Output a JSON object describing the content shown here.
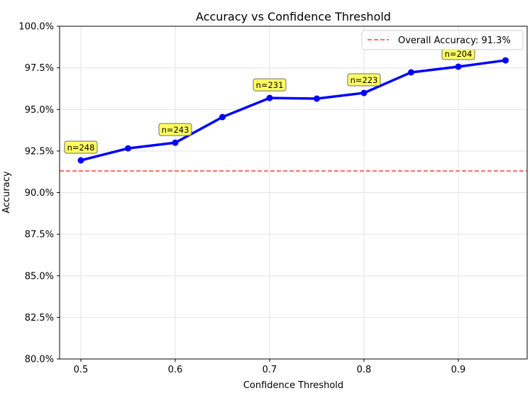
{
  "chart_data": {
    "type": "line",
    "title": "Accuracy vs Confidence Threshold",
    "xlabel": "Confidence Threshold",
    "ylabel": "Accuracy",
    "xlim": [
      0.477,
      0.973
    ],
    "ylim": [
      80.0,
      100.0
    ],
    "x_ticks": [
      0.5,
      0.6,
      0.7,
      0.8,
      0.9
    ],
    "x_tick_labels": [
      "0.5",
      "0.6",
      "0.7",
      "0.8",
      "0.9"
    ],
    "y_ticks": [
      80.0,
      82.5,
      85.0,
      87.5,
      90.0,
      92.5,
      95.0,
      97.5,
      100.0
    ],
    "y_tick_labels": [
      "80.0%",
      "82.5%",
      "85.0%",
      "87.5%",
      "90.0%",
      "92.5%",
      "95.0%",
      "97.5%",
      "100.0%"
    ],
    "grid": true,
    "series": [
      {
        "x": [
          0.5,
          0.55,
          0.6,
          0.65,
          0.7,
          0.75,
          0.8,
          0.85,
          0.9,
          0.95
        ],
        "values": [
          91.94,
          92.66,
          93.0,
          94.54,
          95.69,
          95.65,
          95.99,
          97.23,
          97.57,
          97.95
        ],
        "color": "#0000ff"
      }
    ],
    "reference_line": {
      "value": 91.3,
      "label": "Overall Accuracy: 91.3%",
      "color": "#ff0000",
      "style": "dashed"
    },
    "annotations": [
      {
        "x": 0.5,
        "text": "n=248"
      },
      {
        "x": 0.6,
        "text": "n=243"
      },
      {
        "x": 0.7,
        "text": "n=231"
      },
      {
        "x": 0.8,
        "text": "n=223"
      },
      {
        "x": 0.9,
        "text": "n=204"
      }
    ],
    "annotation_color": "#ffff44",
    "legend_position": "top-right"
  }
}
